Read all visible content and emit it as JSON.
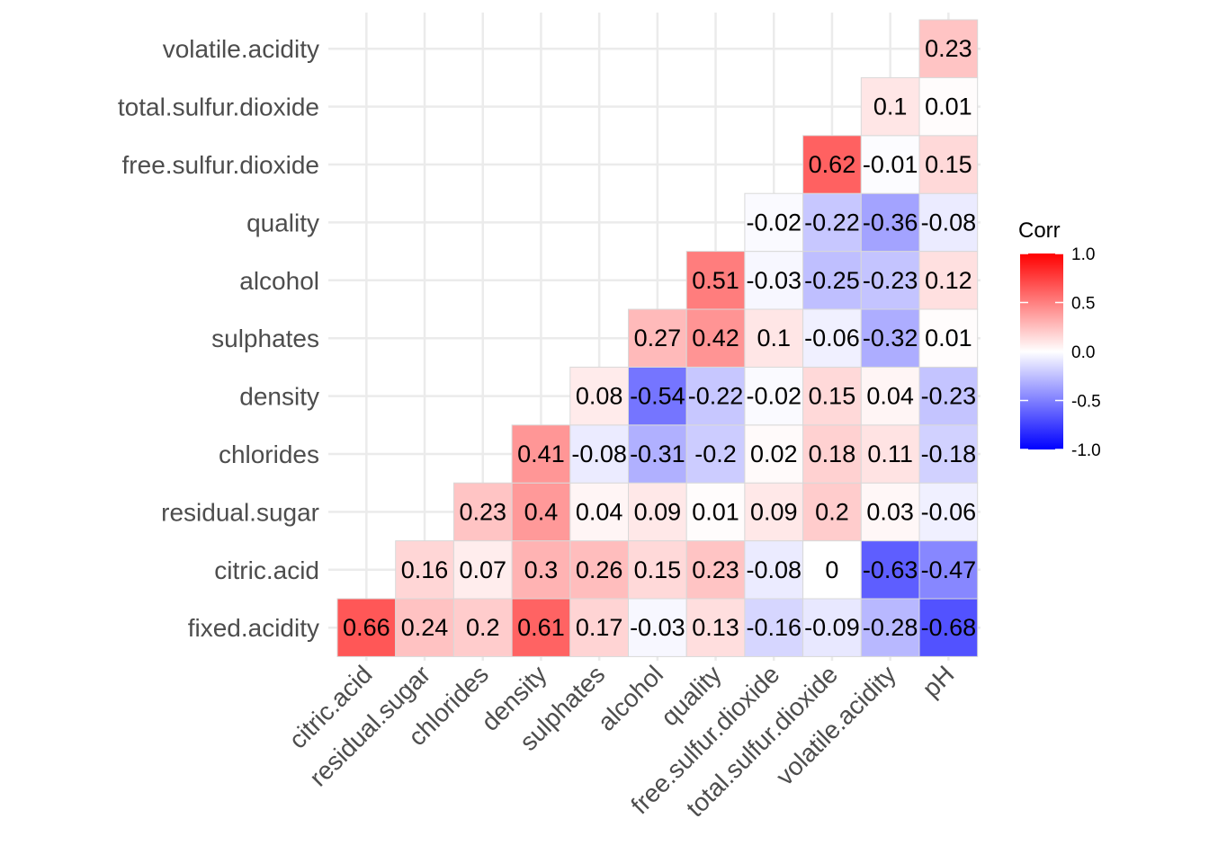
{
  "chart_data": {
    "type": "heatmap",
    "title": "",
    "xlabel": "",
    "ylabel": "",
    "x_categories": [
      "citric.acid",
      "residual.sugar",
      "chlorides",
      "density",
      "sulphates",
      "alcohol",
      "quality",
      "free.sulfur.dioxide",
      "total.sulfur.dioxide",
      "volatile.acidity",
      "pH"
    ],
    "y_categories": [
      "fixed.acidity",
      "citric.acid",
      "residual.sugar",
      "chlorides",
      "density",
      "sulphates",
      "alcohol",
      "quality",
      "free.sulfur.dioxide",
      "total.sulfur.dioxide",
      "volatile.acidity"
    ],
    "cells": [
      {
        "x": "citric.acid",
        "y": "fixed.acidity",
        "value": 0.66
      },
      {
        "x": "residual.sugar",
        "y": "fixed.acidity",
        "value": 0.24
      },
      {
        "x": "chlorides",
        "y": "fixed.acidity",
        "value": 0.2
      },
      {
        "x": "density",
        "y": "fixed.acidity",
        "value": 0.61
      },
      {
        "x": "sulphates",
        "y": "fixed.acidity",
        "value": 0.17
      },
      {
        "x": "alcohol",
        "y": "fixed.acidity",
        "value": -0.03
      },
      {
        "x": "quality",
        "y": "fixed.acidity",
        "value": 0.13
      },
      {
        "x": "free.sulfur.dioxide",
        "y": "fixed.acidity",
        "value": -0.16
      },
      {
        "x": "total.sulfur.dioxide",
        "y": "fixed.acidity",
        "value": -0.09
      },
      {
        "x": "volatile.acidity",
        "y": "fixed.acidity",
        "value": -0.28
      },
      {
        "x": "pH",
        "y": "fixed.acidity",
        "value": -0.68
      },
      {
        "x": "residual.sugar",
        "y": "citric.acid",
        "value": 0.16
      },
      {
        "x": "chlorides",
        "y": "citric.acid",
        "value": 0.07
      },
      {
        "x": "density",
        "y": "citric.acid",
        "value": 0.3
      },
      {
        "x": "sulphates",
        "y": "citric.acid",
        "value": 0.26
      },
      {
        "x": "alcohol",
        "y": "citric.acid",
        "value": 0.15
      },
      {
        "x": "quality",
        "y": "citric.acid",
        "value": 0.23
      },
      {
        "x": "free.sulfur.dioxide",
        "y": "citric.acid",
        "value": -0.08
      },
      {
        "x": "total.sulfur.dioxide",
        "y": "citric.acid",
        "value": 0
      },
      {
        "x": "volatile.acidity",
        "y": "citric.acid",
        "value": -0.63
      },
      {
        "x": "pH",
        "y": "citric.acid",
        "value": -0.47
      },
      {
        "x": "chlorides",
        "y": "residual.sugar",
        "value": 0.23
      },
      {
        "x": "density",
        "y": "residual.sugar",
        "value": 0.4
      },
      {
        "x": "sulphates",
        "y": "residual.sugar",
        "value": 0.04
      },
      {
        "x": "alcohol",
        "y": "residual.sugar",
        "value": 0.09
      },
      {
        "x": "quality",
        "y": "residual.sugar",
        "value": 0.01
      },
      {
        "x": "free.sulfur.dioxide",
        "y": "residual.sugar",
        "value": 0.09
      },
      {
        "x": "total.sulfur.dioxide",
        "y": "residual.sugar",
        "value": 0.2
      },
      {
        "x": "volatile.acidity",
        "y": "residual.sugar",
        "value": 0.03
      },
      {
        "x": "pH",
        "y": "residual.sugar",
        "value": -0.06
      },
      {
        "x": "density",
        "y": "chlorides",
        "value": 0.41
      },
      {
        "x": "sulphates",
        "y": "chlorides",
        "value": -0.08
      },
      {
        "x": "alcohol",
        "y": "chlorides",
        "value": -0.31
      },
      {
        "x": "quality",
        "y": "chlorides",
        "value": -0.2
      },
      {
        "x": "free.sulfur.dioxide",
        "y": "chlorides",
        "value": 0.02
      },
      {
        "x": "total.sulfur.dioxide",
        "y": "chlorides",
        "value": 0.18
      },
      {
        "x": "volatile.acidity",
        "y": "chlorides",
        "value": 0.11
      },
      {
        "x": "pH",
        "y": "chlorides",
        "value": -0.18
      },
      {
        "x": "sulphates",
        "y": "density",
        "value": 0.08
      },
      {
        "x": "alcohol",
        "y": "density",
        "value": -0.54
      },
      {
        "x": "quality",
        "y": "density",
        "value": -0.22
      },
      {
        "x": "free.sulfur.dioxide",
        "y": "density",
        "value": -0.02
      },
      {
        "x": "total.sulfur.dioxide",
        "y": "density",
        "value": 0.15
      },
      {
        "x": "volatile.acidity",
        "y": "density",
        "value": 0.04
      },
      {
        "x": "pH",
        "y": "density",
        "value": -0.23
      },
      {
        "x": "alcohol",
        "y": "sulphates",
        "value": 0.27
      },
      {
        "x": "quality",
        "y": "sulphates",
        "value": 0.42
      },
      {
        "x": "free.sulfur.dioxide",
        "y": "sulphates",
        "value": 0.1
      },
      {
        "x": "total.sulfur.dioxide",
        "y": "sulphates",
        "value": -0.06
      },
      {
        "x": "volatile.acidity",
        "y": "sulphates",
        "value": -0.32
      },
      {
        "x": "pH",
        "y": "sulphates",
        "value": 0.01
      },
      {
        "x": "quality",
        "y": "alcohol",
        "value": 0.51
      },
      {
        "x": "free.sulfur.dioxide",
        "y": "alcohol",
        "value": -0.03
      },
      {
        "x": "total.sulfur.dioxide",
        "y": "alcohol",
        "value": -0.25
      },
      {
        "x": "volatile.acidity",
        "y": "alcohol",
        "value": -0.23
      },
      {
        "x": "pH",
        "y": "alcohol",
        "value": 0.12
      },
      {
        "x": "free.sulfur.dioxide",
        "y": "quality",
        "value": -0.02
      },
      {
        "x": "total.sulfur.dioxide",
        "y": "quality",
        "value": -0.22
      },
      {
        "x": "volatile.acidity",
        "y": "quality",
        "value": -0.36
      },
      {
        "x": "pH",
        "y": "quality",
        "value": -0.08
      },
      {
        "x": "total.sulfur.dioxide",
        "y": "free.sulfur.dioxide",
        "value": 0.62
      },
      {
        "x": "volatile.acidity",
        "y": "free.sulfur.dioxide",
        "value": -0.01
      },
      {
        "x": "pH",
        "y": "free.sulfur.dioxide",
        "value": 0.15
      },
      {
        "x": "volatile.acidity",
        "y": "total.sulfur.dioxide",
        "value": 0.1
      },
      {
        "x": "pH",
        "y": "total.sulfur.dioxide",
        "value": 0.01
      },
      {
        "x": "pH",
        "y": "volatile.acidity",
        "value": 0.23
      }
    ],
    "legend": {
      "title": "Corr",
      "position": "right",
      "ticks": [
        "1.0",
        "0.5",
        "0.0",
        "-0.5",
        "-1.0"
      ],
      "range": [
        -1,
        1
      ]
    },
    "colors": {
      "low": "#0000ff",
      "mid": "#ffffff",
      "high": "#ff0000",
      "grid": "#ebebeb",
      "tile_border": "#d9d9d9"
    },
    "grid": true
  }
}
